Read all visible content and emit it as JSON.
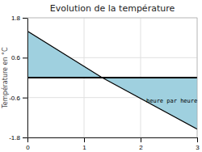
{
  "chart_data": {
    "type": "area",
    "title": "Evolution de la température",
    "y_label": "Température en °C",
    "x": [
      0,
      1.32,
      3
    ],
    "values": [
      1.4,
      0.0,
      -1.55
    ],
    "color": "#9fd0df",
    "xlim": [
      0,
      3
    ],
    "ylim": [
      -1.8,
      1.8
    ],
    "xticks": [
      0,
      1,
      2,
      3
    ],
    "yticks": [
      -1.8,
      -0.6,
      0.6,
      1.8
    ],
    "grid": true,
    "annotations": [
      {
        "text": "heure par heure",
        "x": 2.1,
        "y": -0.62
      }
    ]
  }
}
